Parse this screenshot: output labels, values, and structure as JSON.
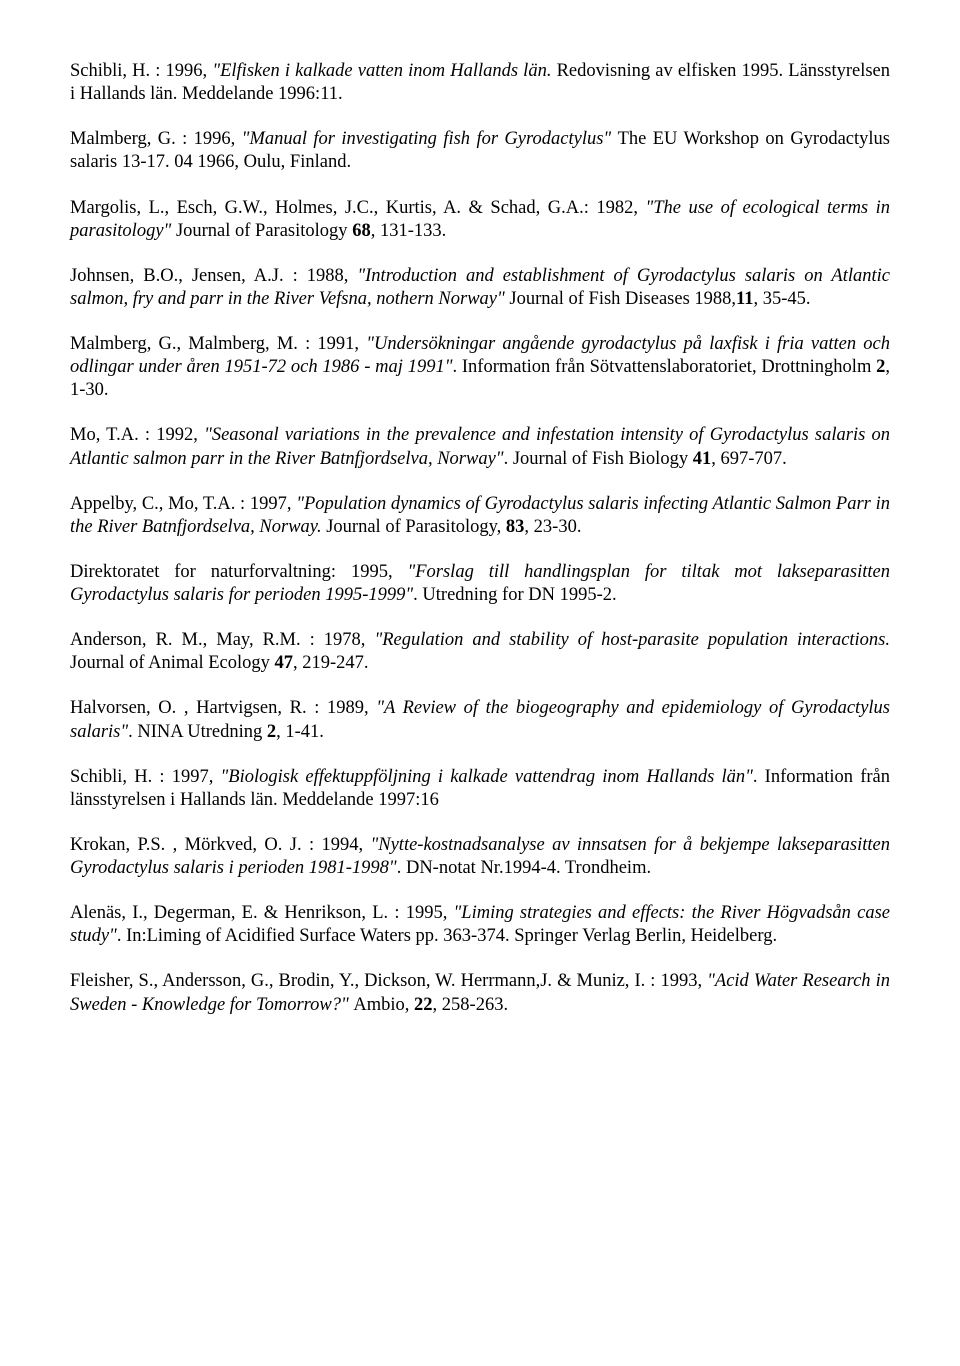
{
  "refs": [
    {
      "segments": [
        {
          "t": "Schibli, H. : 1996, "
        },
        {
          "t": "\"Elfisken i kalkade vatten inom Hallands län. ",
          "i": true
        },
        {
          "t": "Redovisning av elfisken 1995. Länsstyrelsen i Hallands län. Meddelande 1996:11."
        }
      ]
    },
    {
      "segments": [
        {
          "t": "Malmberg, G. : 1996, "
        },
        {
          "t": "\"Manual for investigating fish for Gyrodactylus\" ",
          "i": true
        },
        {
          "t": "The EU Workshop on Gyrodactylus salaris 13-17. 04  1966, Oulu, Finland."
        }
      ]
    },
    {
      "segments": [
        {
          "t": "Margolis, L., Esch, G.W., Holmes, J.C., Kurtis, A. & Schad, G.A.: 1982, "
        },
        {
          "t": "\"The use of ecological terms in parasitology\" ",
          "i": true
        },
        {
          "t": "Journal of Parasitology "
        },
        {
          "t": "68",
          "b": true
        },
        {
          "t": ", 131-133."
        }
      ]
    },
    {
      "segments": [
        {
          "t": "Johnsen, B.O., Jensen, A.J. : 1988, "
        },
        {
          "t": "\"Introduction and establishment of Gyrodactylus salaris on Atlantic salmon, fry and parr in the River Vefsna, nothern Norway\" ",
          "i": true
        },
        {
          "t": "Journal of Fish Diseases 1988,"
        },
        {
          "t": "11",
          "b": true
        },
        {
          "t": ", 35-45."
        }
      ]
    },
    {
      "segments": [
        {
          "t": "Malmberg, G., Malmberg, M. : 1991, "
        },
        {
          "t": "\"Undersökningar angående gyrodactylus på laxfisk i fria vatten och odlingar under åren 1951-72 och 1986 - maj 1991\"",
          "i": true
        },
        {
          "t": ". Information från Sötvattenslaboratoriet, Drottningholm "
        },
        {
          "t": "2",
          "b": true
        },
        {
          "t": ", 1-30."
        }
      ]
    },
    {
      "segments": [
        {
          "t": "Mo, T.A. : 1992, "
        },
        {
          "t": "\"Seasonal variations in the prevalence and infestation intensity of Gyrodactylus salaris on Atlantic salmon parr in the River Batnfjordselva, Norway\"",
          "i": true
        },
        {
          "t": ". Journal of Fish Biology "
        },
        {
          "t": "41",
          "b": true
        },
        {
          "t": ", 697-707."
        }
      ]
    },
    {
      "segments": [
        {
          "t": "Appelby, C., Mo, T.A. : 1997, "
        },
        {
          "t": "\"Population dynamics of Gyrodactylus salaris infecting Atlantic Salmon Parr in the River Batnfjordselva, Norway. ",
          "i": true
        },
        {
          "t": "Journal of Parasitology, "
        },
        {
          "t": "83",
          "b": true
        },
        {
          "t": ", 23-30."
        }
      ]
    },
    {
      "segments": [
        {
          "t": "Direktoratet for naturforvaltning: 1995, "
        },
        {
          "t": "\"Forslag till handlingsplan for tiltak  mot lakseparasitten Gyrodactylus salaris for perioden 1995-1999\"",
          "i": true
        },
        {
          "t": ". Utredning for DN 1995-2."
        }
      ]
    },
    {
      "segments": [
        {
          "t": "Anderson, R. M., May, R.M. : 1978, "
        },
        {
          "t": "\"Regulation and stability of host-parasite population interactions. ",
          "i": true
        },
        {
          "t": "Journal of Animal Ecology "
        },
        {
          "t": "47",
          "b": true
        },
        {
          "t": ", 219-247."
        }
      ]
    },
    {
      "segments": [
        {
          "t": "Halvorsen, O. , Hartvigsen, R. : 1989, "
        },
        {
          "t": "\"A Review of the biogeography and epidemiology of Gyrodactylus salaris\"",
          "i": true
        },
        {
          "t": ". NINA Utredning "
        },
        {
          "t": "2",
          "b": true
        },
        {
          "t": ", 1-41."
        }
      ]
    },
    {
      "segments": [
        {
          "t": "Schibli, H. : 1997, "
        },
        {
          "t": "\"Biologisk effektuppföljning i kalkade vattendrag inom Hallands län\"",
          "i": true
        },
        {
          "t": ". Information från länsstyrelsen i Hallands län. Meddelande 1997:16"
        }
      ]
    },
    {
      "segments": [
        {
          "t": "Krokan, P.S. , Mörkved, O. J. : 1994, "
        },
        {
          "t": "\"Nytte-kostnadsanalyse av innsatsen for å bekjempe lakseparasitten Gyrodactylus salaris i perioden 1981-1998\"",
          "i": true
        },
        {
          "t": ". DN-notat Nr.1994-4. Trondheim."
        }
      ]
    },
    {
      "segments": [
        {
          "t": "Alenäs, I., Degerman, E. & Henrikson, L. : 1995, "
        },
        {
          "t": "\"Liming strategies and effects: the River Högvadsån case study\"",
          "i": true
        },
        {
          "t": ". In:Liming of Acidified Surface Waters pp. 363-374. Springer Verlag Berlin, Heidelberg."
        }
      ]
    },
    {
      "segments": [
        {
          "t": "Fleisher, S., Andersson, G., Brodin, Y., Dickson, W. Herrmann,J. & Muniz, I. : 1993, "
        },
        {
          "t": "\"Acid Water Research in Sweden - Knowledge for Tomorrow?\" ",
          "i": true
        },
        {
          "t": "Ambio, "
        },
        {
          "t": "22",
          "b": true
        },
        {
          "t": ", 258-263."
        }
      ]
    }
  ]
}
